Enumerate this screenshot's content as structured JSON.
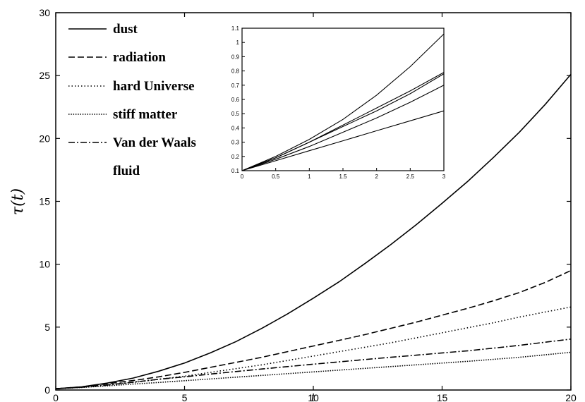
{
  "chart_data": [
    {
      "type": "line",
      "title": "",
      "xlabel": "t",
      "ylabel": "τ(t)",
      "xlim": [
        0,
        20
      ],
      "ylim": [
        0,
        30
      ],
      "xticks": [
        "0",
        "5",
        "10",
        "15",
        "20"
      ],
      "yticks": [
        "0",
        "5",
        "10",
        "15",
        "20",
        "25",
        "30"
      ],
      "grid": false,
      "legend_position": "top-left",
      "legend": [
        "dust",
        "radiation",
        "hard Universe",
        "stiff matter",
        "Van der Waals",
        "fluid"
      ],
      "series": [
        {
          "name": "dust",
          "style": "solid",
          "x": [
            0,
            1,
            2,
            3,
            4,
            5,
            6,
            7,
            8,
            9,
            10,
            11,
            12,
            13,
            14,
            15,
            16,
            17,
            18,
            19,
            20
          ],
          "y": [
            0.1,
            0.25,
            0.55,
            0.95,
            1.5,
            2.15,
            2.95,
            3.85,
            4.9,
            6.05,
            7.3,
            8.6,
            10.05,
            11.55,
            13.15,
            14.85,
            16.6,
            18.5,
            20.5,
            22.7,
            25.1
          ]
        },
        {
          "name": "radiation",
          "style": "dashed",
          "x": [
            0,
            1,
            2,
            3,
            4,
            5,
            6,
            7,
            8,
            9,
            10,
            11,
            12,
            13,
            14,
            15,
            16,
            17,
            18,
            19,
            20
          ],
          "y": [
            0.1,
            0.25,
            0.5,
            0.75,
            1.05,
            1.4,
            1.8,
            2.2,
            2.6,
            3.05,
            3.5,
            3.95,
            4.4,
            4.9,
            5.4,
            5.95,
            6.5,
            7.1,
            7.75,
            8.55,
            9.5
          ]
        },
        {
          "name": "hard Universe",
          "style": "dotted",
          "x": [
            0,
            1,
            2,
            3,
            4,
            5,
            6,
            7,
            8,
            9,
            10,
            11,
            12,
            13,
            14,
            15,
            16,
            17,
            18,
            19,
            20
          ],
          "y": [
            0.1,
            0.22,
            0.4,
            0.6,
            0.85,
            1.1,
            1.4,
            1.7,
            2.0,
            2.35,
            2.7,
            3.05,
            3.4,
            3.75,
            4.15,
            4.55,
            4.95,
            5.35,
            5.8,
            6.2,
            6.6
          ]
        },
        {
          "name": "stiff matter",
          "style": "dense-dotted",
          "x": [
            0,
            1,
            2,
            3,
            4,
            5,
            6,
            7,
            8,
            9,
            10,
            11,
            12,
            13,
            14,
            15,
            16,
            17,
            18,
            19,
            20
          ],
          "y": [
            0.1,
            0.2,
            0.33,
            0.47,
            0.6,
            0.74,
            0.88,
            1.02,
            1.16,
            1.3,
            1.44,
            1.58,
            1.72,
            1.86,
            2.0,
            2.14,
            2.28,
            2.44,
            2.6,
            2.8,
            3.0
          ]
        },
        {
          "name": "Van der Waals fluid",
          "style": "dash-dot",
          "x": [
            0,
            1,
            2,
            3,
            4,
            5,
            6,
            7,
            8,
            9,
            10,
            11,
            12,
            13,
            14,
            15,
            16,
            17,
            18,
            19,
            20
          ],
          "y": [
            0.1,
            0.22,
            0.4,
            0.62,
            0.85,
            1.05,
            1.27,
            1.47,
            1.67,
            1.86,
            2.05,
            2.24,
            2.42,
            2.6,
            2.77,
            2.95,
            3.12,
            3.33,
            3.55,
            3.8,
            4.05
          ]
        }
      ]
    },
    {
      "type": "line",
      "title": "",
      "xlabel": "",
      "ylabel": "",
      "xlim": [
        0,
        3
      ],
      "ylim": [
        0.1,
        1.1
      ],
      "xticks": [
        "0",
        "0.5",
        "1",
        "1.5",
        "2",
        "2.5",
        "3"
      ],
      "yticks": [
        "0.1",
        "0.2",
        "0.3",
        "0.4",
        "0.5",
        "0.6",
        "0.7",
        "0.8",
        "0.9",
        "1",
        "1.1"
      ],
      "grid": false,
      "position": "inset top-center",
      "series": [
        {
          "x": [
            0,
            0.5,
            1,
            1.5,
            2,
            2.5,
            3
          ],
          "y": [
            0.1,
            0.2,
            0.32,
            0.46,
            0.63,
            0.83,
            1.06
          ]
        },
        {
          "x": [
            0,
            0.5,
            1,
            1.5,
            2,
            2.5,
            3
          ],
          "y": [
            0.1,
            0.19,
            0.3,
            0.42,
            0.54,
            0.66,
            0.79
          ]
        },
        {
          "x": [
            0,
            0.5,
            1,
            1.5,
            2,
            2.5,
            3
          ],
          "y": [
            0.1,
            0.19,
            0.3,
            0.41,
            0.52,
            0.64,
            0.78
          ]
        },
        {
          "x": [
            0,
            0.5,
            1,
            1.5,
            2,
            2.5,
            3
          ],
          "y": [
            0.1,
            0.18,
            0.27,
            0.37,
            0.47,
            0.58,
            0.7
          ]
        },
        {
          "x": [
            0,
            0.5,
            1,
            1.5,
            2,
            2.5,
            3
          ],
          "y": [
            0.1,
            0.17,
            0.24,
            0.31,
            0.38,
            0.45,
            0.52
          ]
        }
      ]
    }
  ]
}
